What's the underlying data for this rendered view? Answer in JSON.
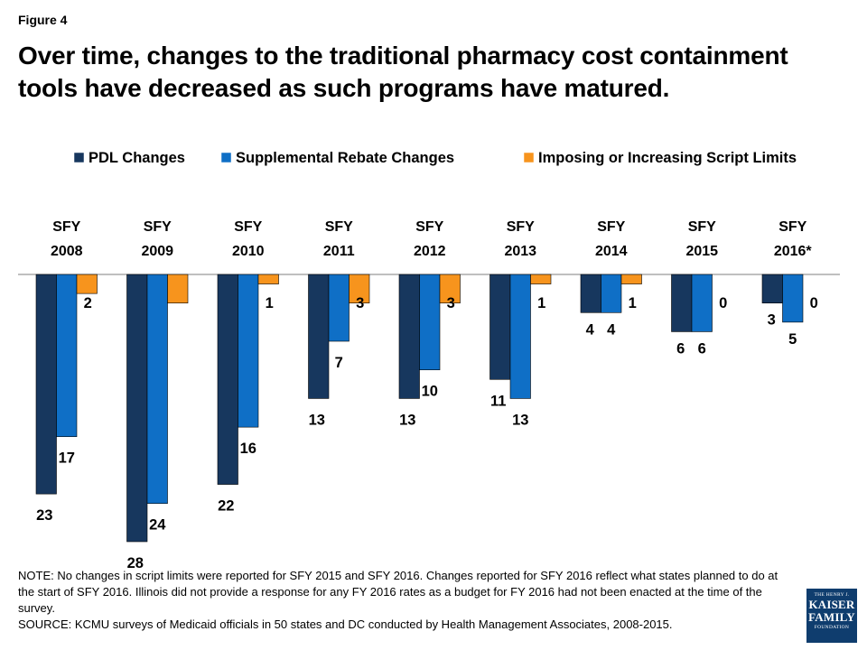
{
  "figure_label": "Figure 4",
  "title": "Over time, changes to the traditional pharmacy cost containment tools have decreased as such programs have matured.",
  "chart_data": {
    "type": "bar",
    "orientation": "downward",
    "categories": [
      "SFY\n2008",
      "SFY\n2009",
      "SFY\n2010",
      "SFY\n2011",
      "SFY\n2012",
      "SFY\n2013",
      "SFY\n2014",
      "SFY\n2015",
      "SFY\n2016*"
    ],
    "series": [
      {
        "name": "PDL Changes",
        "color": "#17375e",
        "values": [
          23,
          28,
          22,
          13,
          13,
          11,
          4,
          6,
          3
        ]
      },
      {
        "name": "Supplemental Rebate Changes",
        "color": "#0f6fc6",
        "values": [
          17,
          24,
          16,
          7,
          10,
          13,
          4,
          6,
          5
        ]
      },
      {
        "name": "Imposing or Increasing Script Limits",
        "color": "#f7941d",
        "values": [
          2,
          3,
          1,
          3,
          3,
          1,
          1,
          0,
          0
        ]
      }
    ],
    "data_labels": [
      [
        "23",
        "28",
        "22",
        "13",
        "13",
        "11",
        "4",
        "6",
        "3"
      ],
      [
        "17",
        "24",
        "16",
        "7",
        "10",
        "13",
        "4",
        "6",
        "5"
      ],
      [
        "2",
        "",
        "1",
        "3",
        "3",
        "1",
        "1",
        "0",
        "0"
      ]
    ],
    "ylim": [
      0,
      28
    ],
    "legend_position": "top",
    "grid": false
  },
  "note": "NOTE: No changes in script limits were reported for SFY 2015 and SFY 2016. Changes reported for SFY 2016 reflect what states planned to do at the start of SFY 2016. Illinois did not provide a response for any FY 2016 rates as a budget for FY 2016 had not been enacted at the time of the survey.",
  "source": "SOURCE: KCMU surveys of Medicaid officials in 50 states and DC conducted by Health Management Associates, 2008-2015.",
  "logo": {
    "line1": "THE HENRY J.",
    "line2": "KAISER",
    "line3": "FAMILY",
    "line4": "FOUNDATION"
  }
}
